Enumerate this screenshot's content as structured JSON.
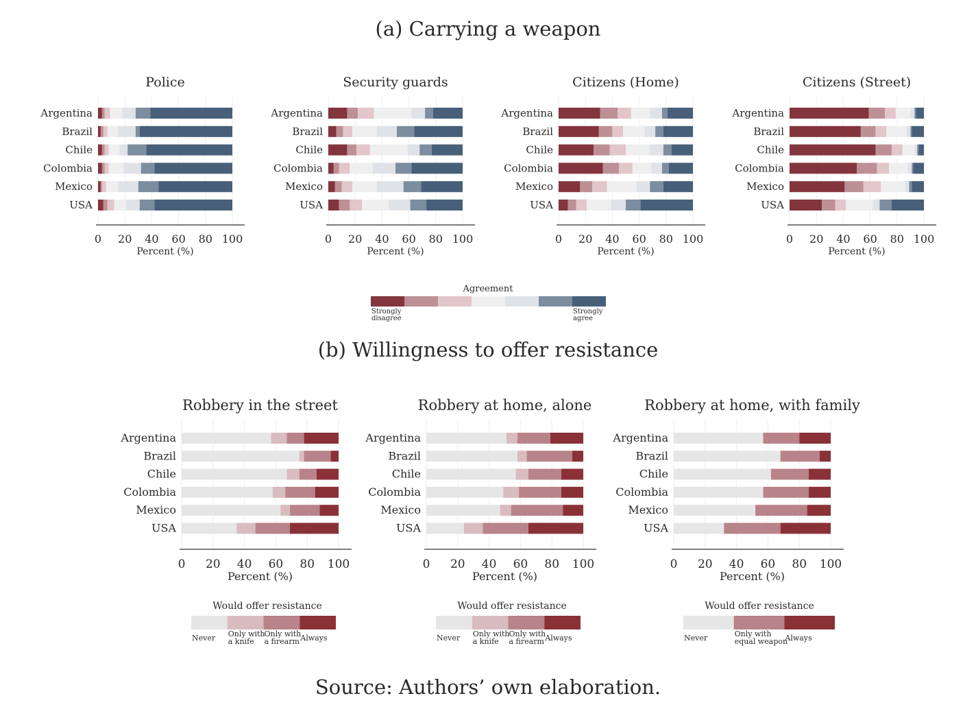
{
  "section_a_title": "(a) Carrying a weapon",
  "section_b_title": "(b) Willingness to offer resistance",
  "source_note": "Source:  Authors’ own elaboration.",
  "xlabel": "Percent (%)",
  "x_ticks": [
    0,
    20,
    40,
    60,
    80,
    100
  ],
  "countries": [
    "Argentina",
    "Brazil",
    "Chile",
    "Colombia",
    "Mexico",
    "USA"
  ],
  "colors": {
    "likert7": [
      "#82353d",
      "#bd9096",
      "#e2c6ca",
      "#efefef",
      "#dfe3e7",
      "#7d8da0",
      "#475f79"
    ],
    "resist4": [
      "#e6e6e6",
      "#d9bcc0",
      "#b88389",
      "#8a3138"
    ],
    "resist3": [
      "#e6e6e6",
      "#b88389",
      "#8a3138"
    ]
  },
  "legend_a": {
    "title": "Agreement",
    "left_label": [
      "Strongly",
      "disagree"
    ],
    "right_label": [
      "Strongly",
      "agree"
    ]
  },
  "chart_data": [
    {
      "type": "bar",
      "stacked": true,
      "orientation": "horizontal",
      "group": "a",
      "title": "Police",
      "xlabel": "Percent (%)",
      "xlim": [
        0,
        100
      ],
      "categories": [
        "Argentina",
        "Brazil",
        "Chile",
        "Colombia",
        "Mexico",
        "USA"
      ],
      "legend": "Agreement",
      "series": [
        {
          "values": [
            3,
            2,
            3,
            3,
            2,
            4
          ]
        },
        {
          "values": [
            2,
            2,
            2,
            2,
            1,
            3
          ]
        },
        {
          "values": [
            4,
            3,
            3,
            3,
            3,
            5
          ]
        },
        {
          "values": [
            9,
            8,
            8,
            11,
            9,
            9
          ]
        },
        {
          "values": [
            10,
            13,
            6,
            13,
            15,
            10
          ]
        },
        {
          "values": [
            11,
            3,
            14,
            10,
            15,
            11
          ]
        },
        {
          "values": [
            61,
            69,
            64,
            58,
            55,
            58
          ]
        }
      ]
    },
    {
      "type": "bar",
      "stacked": true,
      "orientation": "horizontal",
      "group": "a",
      "title": "Security guards",
      "xlabel": "Percent (%)",
      "xlim": [
        0,
        100
      ],
      "categories": [
        "Argentina",
        "Brazil",
        "Chile",
        "Colombia",
        "Mexico",
        "USA"
      ],
      "legend": "Agreement",
      "series": [
        {
          "values": [
            14,
            6,
            14,
            4,
            5,
            8
          ]
        },
        {
          "values": [
            8,
            5,
            7,
            4,
            5,
            8
          ]
        },
        {
          "values": [
            12,
            7,
            10,
            8,
            8,
            9
          ]
        },
        {
          "values": [
            28,
            18,
            28,
            17,
            18,
            20
          ]
        },
        {
          "values": [
            10,
            15,
            9,
            17,
            20,
            16
          ]
        },
        {
          "values": [
            6,
            13,
            9,
            12,
            13,
            12
          ]
        },
        {
          "values": [
            22,
            36,
            23,
            38,
            31,
            27
          ]
        }
      ]
    },
    {
      "type": "bar",
      "stacked": true,
      "orientation": "horizontal",
      "group": "a",
      "title": "Citizens (Home)",
      "xlabel": "Percent (%)",
      "xlim": [
        0,
        100
      ],
      "categories": [
        "Argentina",
        "Brazil",
        "Chile",
        "Colombia",
        "Mexico",
        "USA"
      ],
      "legend": "Agreement",
      "series": [
        {
          "values": [
            31,
            30,
            26,
            33,
            16,
            7
          ]
        },
        {
          "values": [
            13,
            10,
            12,
            12,
            9,
            6
          ]
        },
        {
          "values": [
            10,
            8,
            12,
            10,
            11,
            8
          ]
        },
        {
          "values": [
            14,
            16,
            18,
            14,
            22,
            18
          ]
        },
        {
          "values": [
            9,
            8,
            10,
            8,
            10,
            11
          ]
        },
        {
          "values": [
            4,
            6,
            6,
            5,
            10,
            11
          ]
        },
        {
          "values": [
            19,
            22,
            16,
            18,
            22,
            39
          ]
        }
      ]
    },
    {
      "type": "bar",
      "stacked": true,
      "orientation": "horizontal",
      "group": "a",
      "title": "Citizens (Street)",
      "xlabel": "Percent (%)",
      "xlim": [
        0,
        100
      ],
      "categories": [
        "Argentina",
        "Brazil",
        "Chile",
        "Colombia",
        "Mexico",
        "USA"
      ],
      "legend": "Agreement",
      "series": [
        {
          "values": [
            59,
            53,
            64,
            50,
            41,
            24
          ]
        },
        {
          "values": [
            12,
            11,
            12,
            15,
            14,
            10
          ]
        },
        {
          "values": [
            8,
            8,
            8,
            9,
            13,
            8
          ]
        },
        {
          "values": [
            11,
            15,
            9,
            14,
            18,
            20
          ]
        },
        {
          "values": [
            3,
            3,
            2,
            3,
            3,
            5
          ]
        },
        {
          "values": [
            1,
            1,
            1,
            1,
            2,
            9
          ]
        },
        {
          "values": [
            6,
            9,
            4,
            8,
            9,
            24
          ]
        }
      ]
    },
    {
      "type": "bar",
      "stacked": true,
      "orientation": "horizontal",
      "group": "b",
      "title": "Robbery in the street",
      "xlabel": "Percent (%)",
      "xlim": [
        0,
        100
      ],
      "categories": [
        "Argentina",
        "Brazil",
        "Chile",
        "Colombia",
        "Mexico",
        "USA"
      ],
      "legend": {
        "title": "Would offer resistance",
        "labels": [
          [
            "Never"
          ],
          [
            "Only with",
            "a knife"
          ],
          [
            "Only with",
            "a firearm"
          ],
          [
            "Always"
          ]
        ]
      },
      "series": [
        {
          "name": "Never",
          "values": [
            57,
            75,
            67,
            58,
            63,
            35
          ]
        },
        {
          "name": "Only with a knife",
          "values": [
            10,
            3,
            8,
            8,
            6,
            12
          ]
        },
        {
          "name": "Only with a firearm",
          "values": [
            11,
            17,
            11,
            19,
            19,
            22
          ]
        },
        {
          "name": "Always",
          "values": [
            22,
            5,
            14,
            15,
            12,
            31
          ]
        }
      ]
    },
    {
      "type": "bar",
      "stacked": true,
      "orientation": "horizontal",
      "group": "b",
      "title": "Robbery at home, alone",
      "xlabel": "Percent (%)",
      "xlim": [
        0,
        100
      ],
      "categories": [
        "Argentina",
        "Brazil",
        "Chile",
        "Colombia",
        "Mexico",
        "USA"
      ],
      "legend": {
        "title": "Would offer resistance",
        "labels": [
          [
            "Never"
          ],
          [
            "Only with",
            "a knife"
          ],
          [
            "Only with",
            "a firearm"
          ],
          [
            "Always"
          ]
        ]
      },
      "series": [
        {
          "name": "Never",
          "values": [
            51,
            58,
            57,
            49,
            47,
            24
          ]
        },
        {
          "name": "Only with a knife",
          "values": [
            7,
            6,
            8,
            10,
            7,
            12
          ]
        },
        {
          "name": "Only with a firearm",
          "values": [
            21,
            29,
            21,
            27,
            33,
            29
          ]
        },
        {
          "name": "Always",
          "values": [
            21,
            7,
            14,
            14,
            13,
            35
          ]
        }
      ]
    },
    {
      "type": "bar",
      "stacked": true,
      "orientation": "horizontal",
      "group": "b",
      "title": "Robbery at home, with family",
      "xlabel": "Percent (%)",
      "xlim": [
        0,
        100
      ],
      "categories": [
        "Argentina",
        "Brazil",
        "Chile",
        "Colombia",
        "Mexico",
        "USA"
      ],
      "legend": {
        "title": "Would offer resistance",
        "labels": [
          [
            "Never"
          ],
          [
            "Only with",
            "equal weapon"
          ],
          [
            "Always"
          ]
        ]
      },
      "series": [
        {
          "name": "Never",
          "values": [
            57,
            68,
            62,
            57,
            52,
            32
          ]
        },
        {
          "name": "Only with equal weapon",
          "values": [
            23,
            25,
            24,
            29,
            33,
            36
          ]
        },
        {
          "name": "Always",
          "values": [
            20,
            7,
            14,
            14,
            15,
            32
          ]
        }
      ]
    }
  ]
}
